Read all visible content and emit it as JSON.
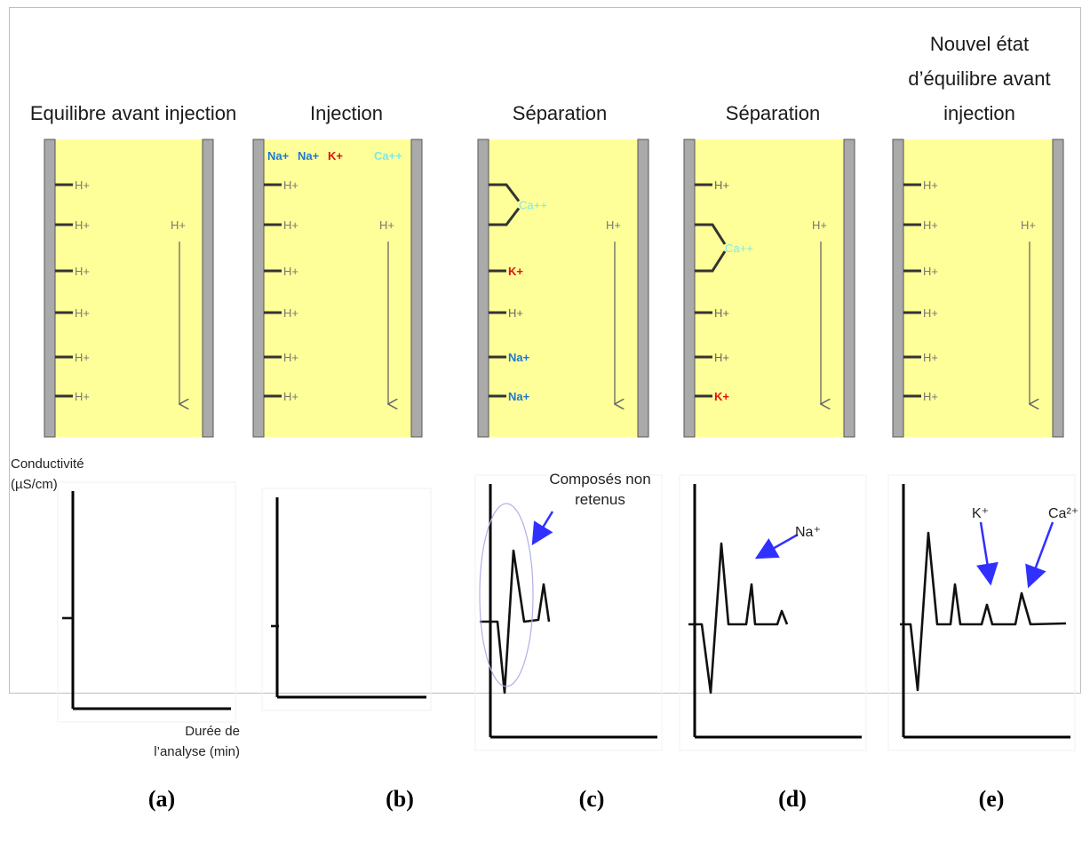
{
  "panels": [
    {
      "caption": "(a)",
      "title": [
        "Equilibre avant injection"
      ],
      "sites": [
        "H+",
        "H+",
        "H+",
        "H+",
        "H+",
        "H+"
      ],
      "top_ions": [],
      "eluent": "H+",
      "bound_ca": null
    },
    {
      "caption": "(b)",
      "title": [
        "Injection"
      ],
      "sites": [
        "H+",
        "H+",
        "H+",
        "H+",
        "H+",
        "H+"
      ],
      "top_ions": [
        {
          "text": "Na+",
          "color": "#1f77d0"
        },
        {
          "text": "Na+",
          "color": "#1f77d0"
        },
        {
          "text": "K+",
          "color": "#e01010"
        },
        {
          "text": "Ca++",
          "color": "#7fe8e8"
        }
      ],
      "eluent": "H+",
      "bound_ca": null
    },
    {
      "caption": "(c)",
      "title": [
        "Séparation"
      ],
      "sites": [
        "",
        "",
        "K+",
        "H+",
        "Na+",
        "Na+"
      ],
      "site_colors": [
        "",
        "",
        "#e01010",
        "#666666",
        "#1f77d0",
        "#1f77d0"
      ],
      "top_ions": [],
      "eluent": "H+",
      "bound_ca": "Ca++"
    },
    {
      "caption": "(d)",
      "title": [
        "Séparation"
      ],
      "sites": [
        "H+",
        "",
        "",
        "H+",
        "H+",
        "K+"
      ],
      "site_colors": [
        "#666666",
        "",
        "",
        "#666666",
        "#666666",
        "#e01010"
      ],
      "top_ions": [],
      "eluent": "H+",
      "bound_ca": "Ca++"
    },
    {
      "caption": "(e)",
      "title": [
        "Nouvel état",
        "d’équilibre avant",
        "injection"
      ],
      "sites": [
        "H+",
        "H+",
        "H+",
        "H+",
        "H+",
        "H+"
      ],
      "top_ions": [],
      "eluent": "H+",
      "bound_ca": null
    }
  ],
  "axis": {
    "y_label": [
      "Conductivité",
      "(µS/cm)"
    ],
    "x_label": [
      "Durée de",
      "l’analyse (min)"
    ]
  },
  "annotations": {
    "c": "Composés non retenus",
    "d": "Na⁺",
    "e_k": "K⁺",
    "e_ca": "Ca²⁺"
  },
  "colors": {
    "column": "#ffff99",
    "wall": "#aaaaaa",
    "arrow": "#4040ff"
  }
}
